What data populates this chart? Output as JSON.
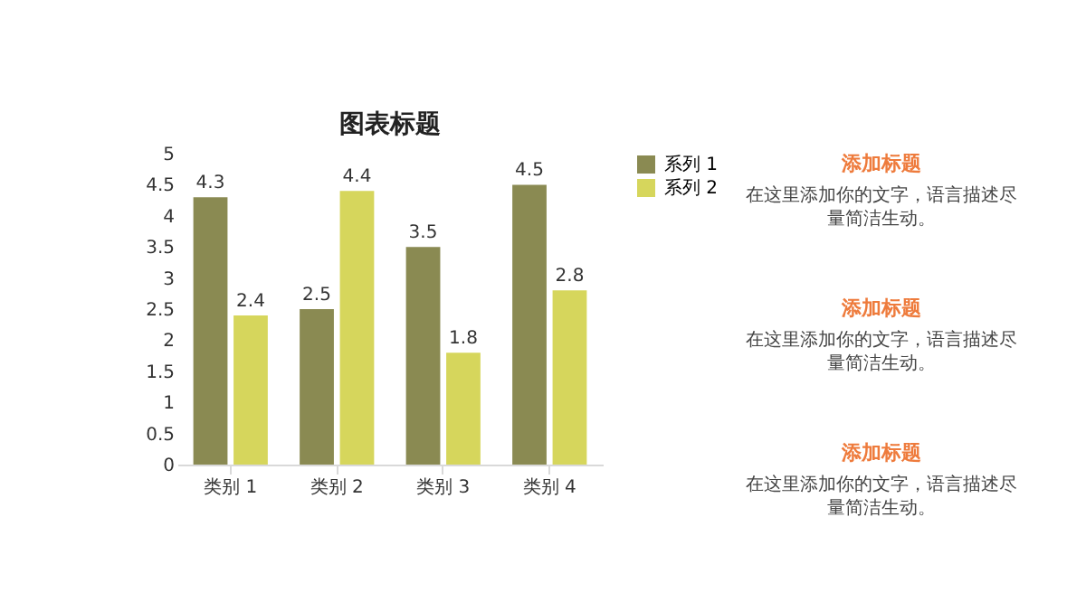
{
  "chart_data": [
    {
      "type": "bar",
      "title": "图表标题",
      "categories": [
        "类别 1",
        "类别 2",
        "类别 3",
        "类别 4"
      ],
      "series": [
        {
          "name": "系列 1",
          "color": "#8a8a52",
          "values": [
            4.3,
            2.5,
            3.5,
            4.5
          ]
        },
        {
          "name": "系列 2",
          "color": "#d6d65c",
          "values": [
            2.4,
            4.4,
            1.8,
            2.8
          ]
        }
      ],
      "ylim": [
        0,
        5
      ],
      "yticks": [
        0,
        0.5,
        1,
        1.5,
        2,
        2.5,
        3,
        3.5,
        4,
        4.5,
        5
      ],
      "grid": false,
      "legend": "right",
      "data_labels": true
    },
    {
      "type": "other",
      "annotations": [
        "添加标题",
        "在这里添加你的文字，语言描述尽量简洁生动。",
        "添加标题",
        "在这里添加你的文字，语言描述尽量简洁生动。",
        "添加标题",
        "在这里添加你的文字，语言描述尽量简洁生动。"
      ]
    }
  ]
}
